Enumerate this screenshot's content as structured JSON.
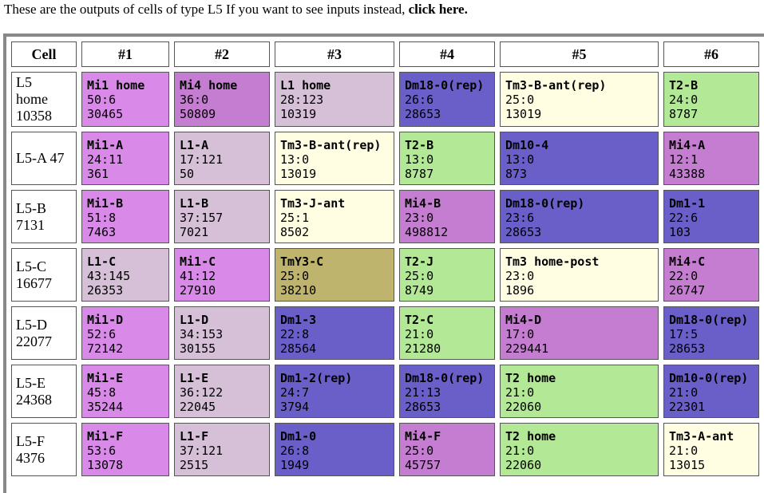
{
  "intro": {
    "text": "These are the outputs of cells of type L5 If you want to see inputs instead, ",
    "link": "click here."
  },
  "headers": [
    "Cell",
    "#1",
    "#2",
    "#3",
    "#4",
    "#5",
    "#6"
  ],
  "colors": {
    "Mi1": "#d98ae8",
    "Mi4": "#c47dd0",
    "L1": "#d5c0d8",
    "Dm": "#6a5ec8",
    "Tm3": "#fffde2",
    "T2": "#b2e896",
    "TmY3": "#bfb46e"
  },
  "rows": [
    {
      "cell_lines": [
        "L5",
        "home",
        "10358"
      ],
      "partners": [
        {
          "name": "Mi1 home",
          "syn": "50:6",
          "id": "30465",
          "color": "Mi1"
        },
        {
          "name": "Mi4 home",
          "syn": "36:0",
          "id": "50809",
          "color": "Mi4"
        },
        {
          "name": "L1 home",
          "syn": "28:123",
          "id": "10319",
          "color": "L1"
        },
        {
          "name": "Dm18-0(rep)",
          "syn": "26:6",
          "id": "28653",
          "color": "Dm"
        },
        {
          "name": "Tm3-B-ant(rep)",
          "syn": "25:0",
          "id": "13019",
          "color": "Tm3"
        },
        {
          "name": "T2-B",
          "syn": "24:0",
          "id": "8787",
          "color": "T2"
        }
      ]
    },
    {
      "cell_lines": [
        "L5-A 47"
      ],
      "partners": [
        {
          "name": "Mi1-A",
          "syn": "24:11",
          "id": "361",
          "color": "Mi1"
        },
        {
          "name": "L1-A",
          "syn": "17:121",
          "id": "50",
          "color": "L1"
        },
        {
          "name": "Tm3-B-ant(rep)",
          "syn": "13:0",
          "id": "13019",
          "color": "Tm3"
        },
        {
          "name": "T2-B",
          "syn": "13:0",
          "id": "8787",
          "color": "T2"
        },
        {
          "name": "Dm10-4",
          "syn": "13:0",
          "id": "873",
          "color": "Dm"
        },
        {
          "name": "Mi4-A",
          "syn": "12:1",
          "id": "43388",
          "color": "Mi4"
        }
      ]
    },
    {
      "cell_lines": [
        "L5-B",
        "7131"
      ],
      "partners": [
        {
          "name": "Mi1-B",
          "syn": "51:8",
          "id": "7463",
          "color": "Mi1"
        },
        {
          "name": "L1-B",
          "syn": "37:157",
          "id": "7021",
          "color": "L1"
        },
        {
          "name": "Tm3-J-ant",
          "syn": "25:1",
          "id": "8502",
          "color": "Tm3"
        },
        {
          "name": "Mi4-B",
          "syn": "23:0",
          "id": "498812",
          "color": "Mi4"
        },
        {
          "name": "Dm18-0(rep)",
          "syn": "23:6",
          "id": "28653",
          "color": "Dm"
        },
        {
          "name": "Dm1-1",
          "syn": "22:6",
          "id": "103",
          "color": "Dm"
        }
      ]
    },
    {
      "cell_lines": [
        "L5-C",
        "16677"
      ],
      "partners": [
        {
          "name": "L1-C",
          "syn": "43:145",
          "id": "26353",
          "color": "L1"
        },
        {
          "name": "Mi1-C",
          "syn": "41:12",
          "id": "27910",
          "color": "Mi1"
        },
        {
          "name": "TmY3-C",
          "syn": "25:0",
          "id": "38210",
          "color": "TmY3"
        },
        {
          "name": "T2-J",
          "syn": "25:0",
          "id": "8749",
          "color": "T2"
        },
        {
          "name": "Tm3 home-post",
          "syn": "23:0",
          "id": "1896",
          "color": "Tm3"
        },
        {
          "name": "Mi4-C",
          "syn": "22:0",
          "id": "26747",
          "color": "Mi4"
        }
      ]
    },
    {
      "cell_lines": [
        "L5-D",
        "22077"
      ],
      "partners": [
        {
          "name": "Mi1-D",
          "syn": "52:6",
          "id": "72142",
          "color": "Mi1"
        },
        {
          "name": "L1-D",
          "syn": "34:153",
          "id": "30155",
          "color": "L1"
        },
        {
          "name": "Dm1-3",
          "syn": "22:8",
          "id": "28564",
          "color": "Dm"
        },
        {
          "name": "T2-C",
          "syn": "21:0",
          "id": "21280",
          "color": "T2"
        },
        {
          "name": "Mi4-D",
          "syn": "17:0",
          "id": "229441",
          "color": "Mi4"
        },
        {
          "name": "Dm18-0(rep)",
          "syn": "17:5",
          "id": "28653",
          "color": "Dm"
        }
      ]
    },
    {
      "cell_lines": [
        "L5-E",
        "24368"
      ],
      "partners": [
        {
          "name": "Mi1-E",
          "syn": "45:8",
          "id": "35244",
          "color": "Mi1"
        },
        {
          "name": "L1-E",
          "syn": "36:122",
          "id": "22045",
          "color": "L1"
        },
        {
          "name": "Dm1-2(rep)",
          "syn": "24:7",
          "id": "3794",
          "color": "Dm"
        },
        {
          "name": "Dm18-0(rep)",
          "syn": "21:13",
          "id": "28653",
          "color": "Dm"
        },
        {
          "name": "T2 home",
          "syn": "21:0",
          "id": "22060",
          "color": "T2"
        },
        {
          "name": "Dm10-0(rep)",
          "syn": "21:0",
          "id": "22301",
          "color": "Dm"
        }
      ]
    },
    {
      "cell_lines": [
        "L5-F",
        "4376"
      ],
      "partners": [
        {
          "name": "Mi1-F",
          "syn": "53:6",
          "id": "13078",
          "color": "Mi1"
        },
        {
          "name": "L1-F",
          "syn": "37:121",
          "id": "2515",
          "color": "L1"
        },
        {
          "name": "Dm1-0",
          "syn": "26:8",
          "id": "1949",
          "color": "Dm"
        },
        {
          "name": "Mi4-F",
          "syn": "25:0",
          "id": "45757",
          "color": "Mi4"
        },
        {
          "name": "T2 home",
          "syn": "21:0",
          "id": "22060",
          "color": "T2"
        },
        {
          "name": "Tm3-A-ant",
          "syn": "21:0",
          "id": "13015",
          "color": "Tm3"
        }
      ]
    }
  ]
}
